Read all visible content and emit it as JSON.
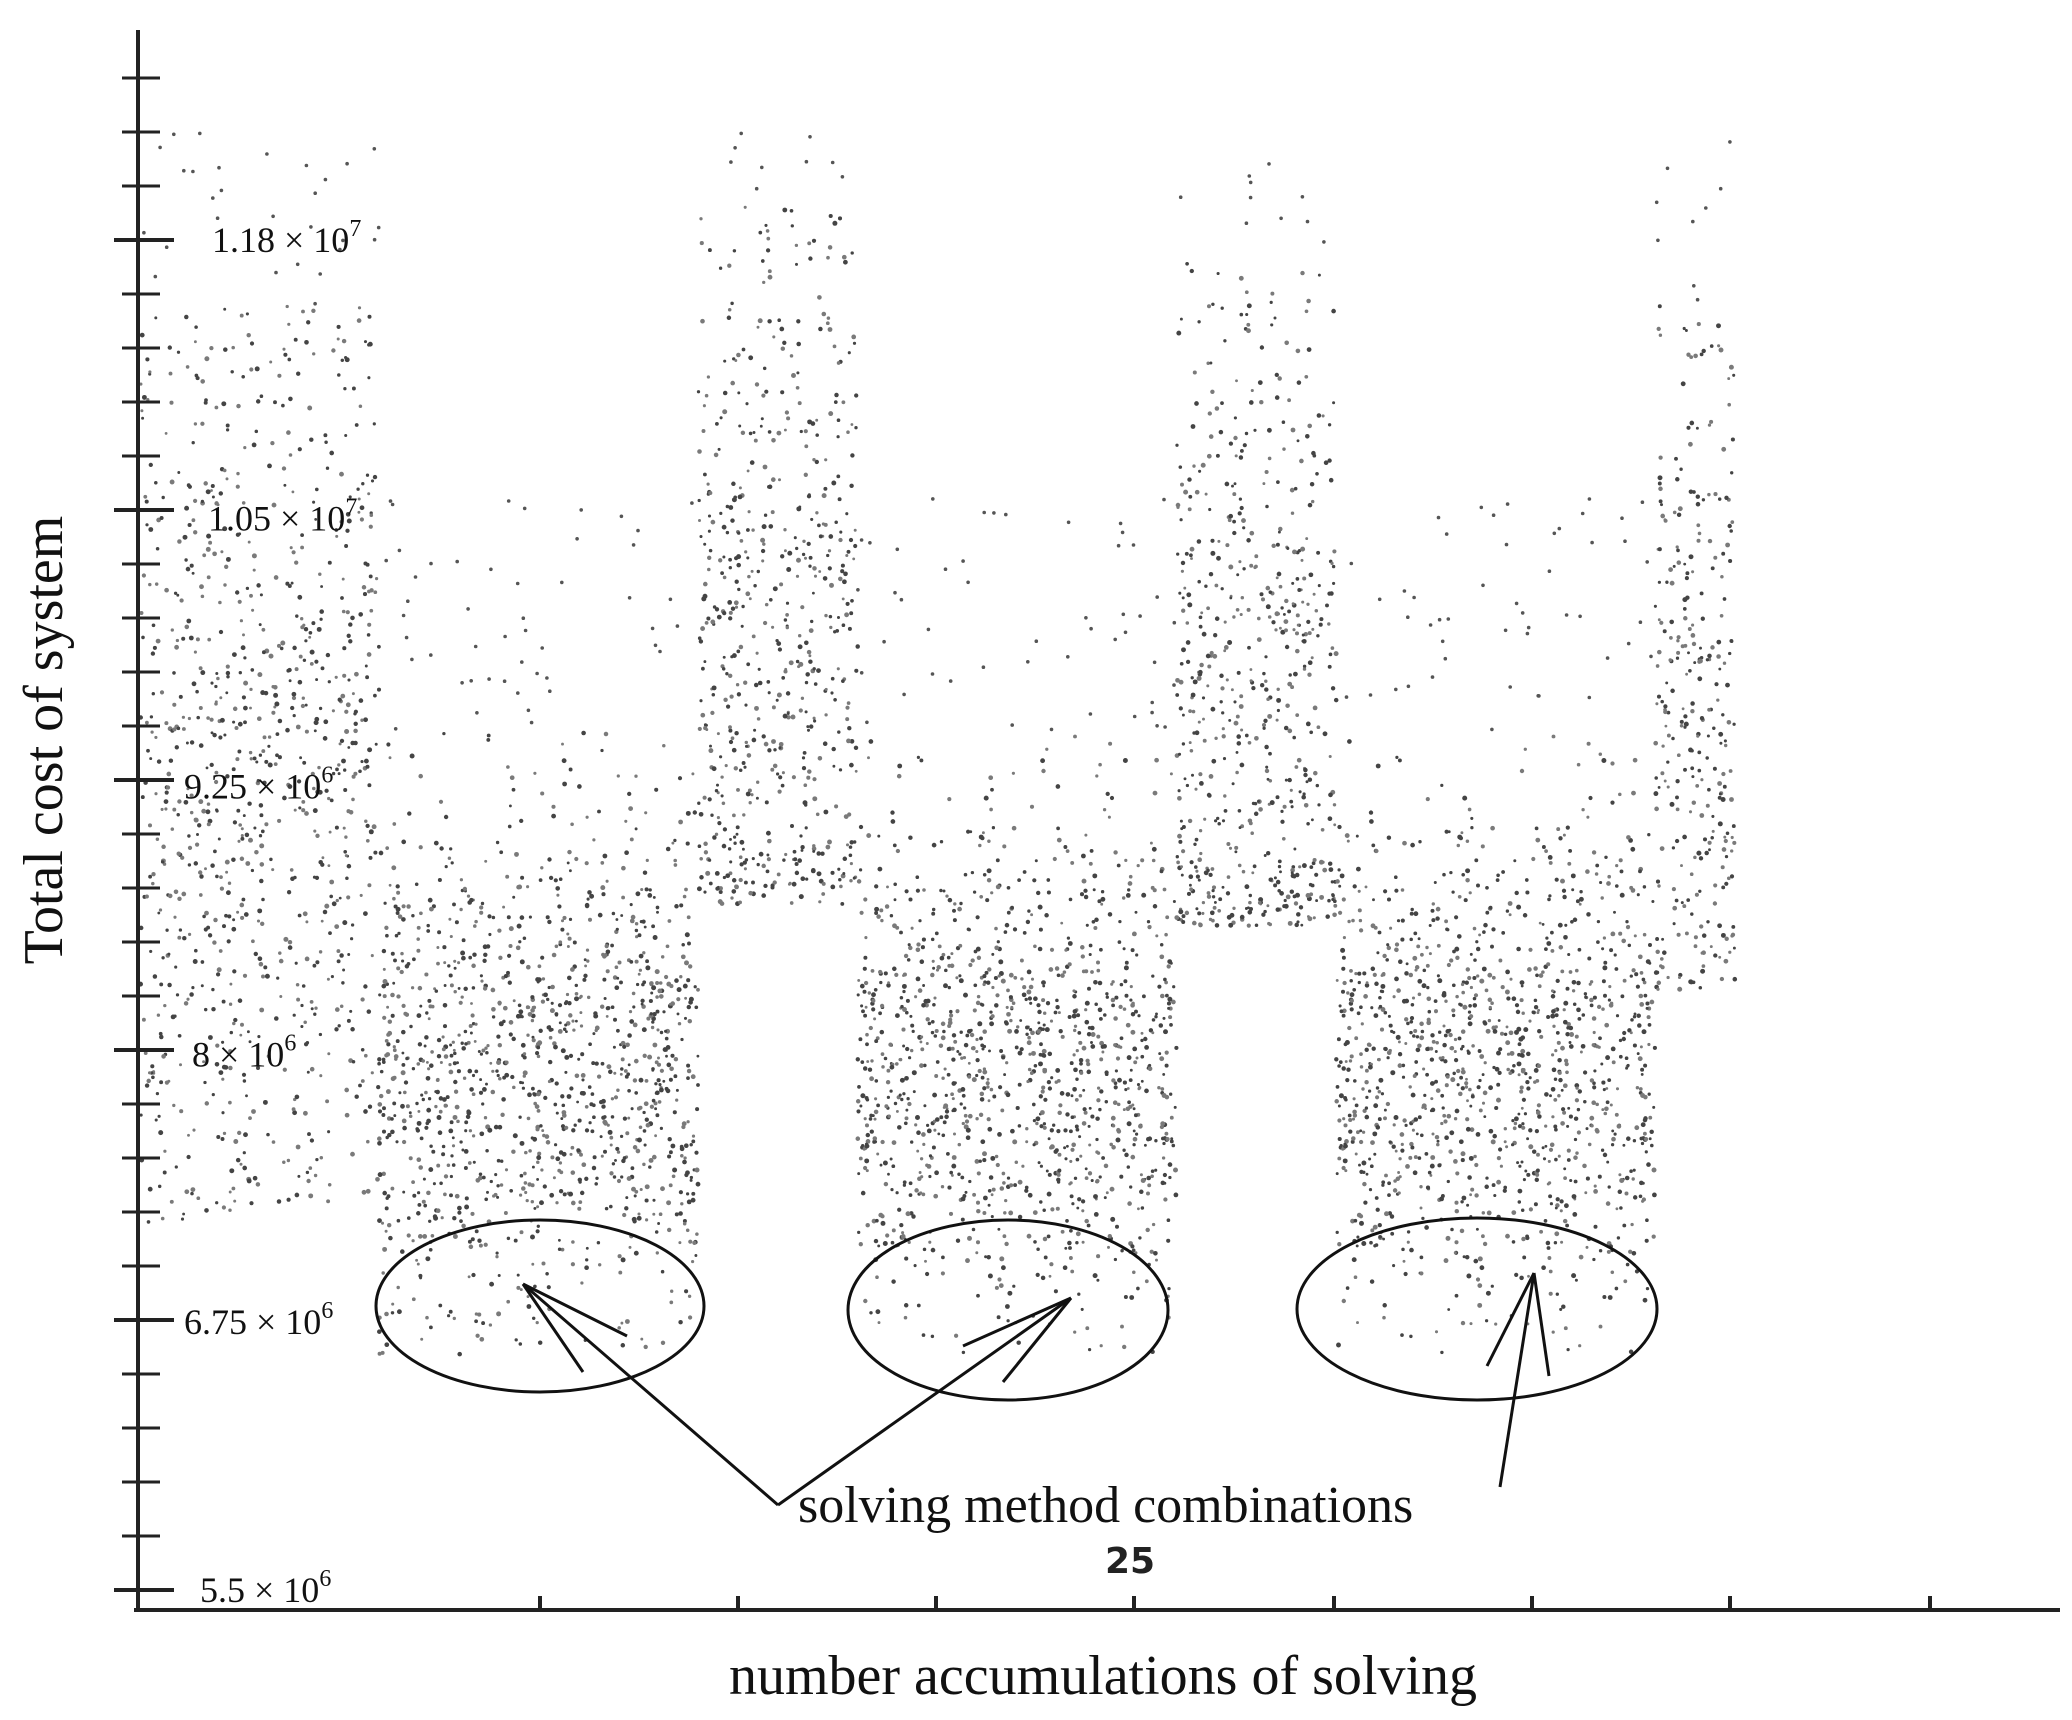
{
  "chart_data": {
    "type": "scatter",
    "title": "",
    "xlabel": "number accumulations of solving",
    "ylabel": "Total cost of system",
    "xlim": [
      0,
      48
    ],
    "ylim": [
      5500000.0,
      12300000.0
    ],
    "x_tick_labels": [
      {
        "x": 25,
        "label": "25"
      }
    ],
    "y_tick_labels": [
      {
        "value": 11800000,
        "mantissa": "1.18",
        "exp": "7"
      },
      {
        "value": 10500000,
        "mantissa": "1.05",
        "exp": "7"
      },
      {
        "value": 9250000,
        "mantissa": "9.25",
        "exp": "6"
      },
      {
        "value": 8000000,
        "mantissa": "8",
        "exp": "6"
      },
      {
        "value": 6750000,
        "mantissa": "6.75",
        "exp": "6"
      },
      {
        "value": 5500000,
        "mantissa": "5.5",
        "exp": "6"
      }
    ],
    "grid": false,
    "annotation": {
      "text": "solving method combinations",
      "highlighted_regions": [
        {
          "x_center": 10,
          "y_center": 6750000
        },
        {
          "x_center": 22,
          "y_center": 6750000
        },
        {
          "x_center": 34,
          "y_center": 6750000
        }
      ]
    },
    "series": [
      {
        "blocks": [
          {
            "x_range": [
              0,
              6
            ],
            "y_mean": 9300000,
            "y_sd": 1200000,
            "y_min": 7200000,
            "y_max": 11500000
          },
          {
            "x_range": [
              6,
              14
            ],
            "y_mean": 7950000,
            "y_sd": 600000,
            "y_min": 6600000,
            "y_max": 9500000
          },
          {
            "x_range": [
              14,
              18
            ],
            "y_mean": 9950000,
            "y_sd": 1000000,
            "y_min": 8700000,
            "y_max": 12000000
          },
          {
            "x_range": [
              18,
              26
            ],
            "y_mean": 7950000,
            "y_sd": 600000,
            "y_min": 6600000,
            "y_max": 9500000
          },
          {
            "x_range": [
              26,
              30
            ],
            "y_mean": 9700000,
            "y_sd": 1000000,
            "y_min": 8600000,
            "y_max": 11700000
          },
          {
            "x_range": [
              30,
              38
            ],
            "y_mean": 7950000,
            "y_sd": 600000,
            "y_min": 6600000,
            "y_max": 9500000
          },
          {
            "x_range": [
              38,
              40
            ],
            "y_mean": 9600000,
            "y_sd": 900000,
            "y_min": 8300000,
            "y_max": 11500000
          }
        ]
      }
    ]
  }
}
